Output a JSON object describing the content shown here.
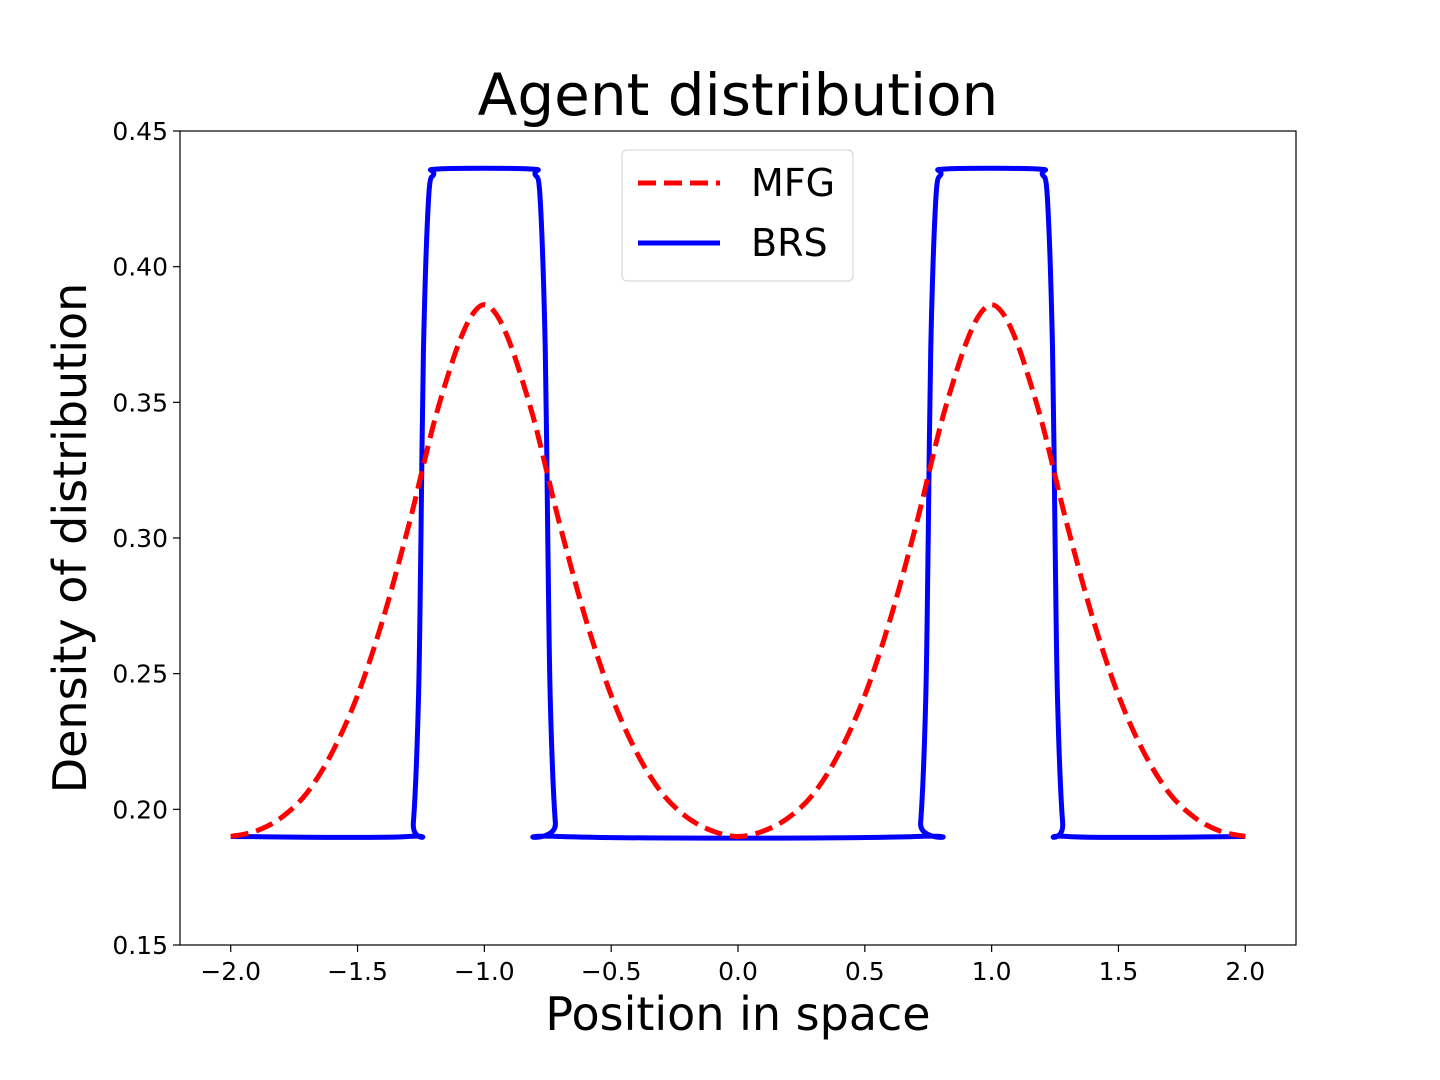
{
  "chart_data": {
    "type": "line",
    "title": "Agent distribution",
    "xlabel": "Position in space",
    "ylabel": "Density of distribution",
    "xlim": [
      -2.2,
      2.2
    ],
    "ylim": [
      0.15,
      0.45
    ],
    "xticks": [
      -2.0,
      -1.5,
      -1.0,
      -0.5,
      0.0,
      0.5,
      1.0,
      1.5,
      2.0
    ],
    "xtick_labels": [
      "−2.0",
      "−1.5",
      "−1.0",
      "−0.5",
      "0.0",
      "0.5",
      "1.0",
      "1.5",
      "2.0"
    ],
    "yticks": [
      0.15,
      0.2,
      0.25,
      0.3,
      0.35,
      0.4,
      0.45
    ],
    "ytick_labels": [
      "0.15",
      "0.20",
      "0.25",
      "0.30",
      "0.35",
      "0.40",
      "0.45"
    ],
    "grid": false,
    "legend_position": "top-center",
    "series": [
      {
        "name": "MFG",
        "color": "#ff0000",
        "style": "dashed",
        "x": [
          -2.0,
          -1.9,
          -1.8,
          -1.7,
          -1.6,
          -1.5,
          -1.4,
          -1.3,
          -1.25,
          -1.2,
          -1.15,
          -1.1,
          -1.05,
          -1.0,
          -0.95,
          -0.9,
          -0.85,
          -0.8,
          -0.75,
          -0.7,
          -0.6,
          -0.5,
          -0.4,
          -0.3,
          -0.2,
          -0.1,
          0.0,
          0.1,
          0.2,
          0.3,
          0.4,
          0.5,
          0.6,
          0.7,
          0.75,
          0.8,
          0.85,
          0.9,
          0.95,
          1.0,
          1.05,
          1.1,
          1.15,
          1.2,
          1.25,
          1.3,
          1.4,
          1.5,
          1.6,
          1.7,
          1.8,
          1.9,
          2.0
        ],
        "y": [
          0.19,
          0.192,
          0.197,
          0.206,
          0.221,
          0.242,
          0.27,
          0.304,
          0.323,
          0.342,
          0.358,
          0.372,
          0.382,
          0.386,
          0.382,
          0.372,
          0.358,
          0.342,
          0.323,
          0.304,
          0.27,
          0.242,
          0.221,
          0.206,
          0.197,
          0.192,
          0.19,
          0.192,
          0.197,
          0.206,
          0.221,
          0.242,
          0.27,
          0.304,
          0.323,
          0.342,
          0.358,
          0.372,
          0.382,
          0.386,
          0.382,
          0.372,
          0.358,
          0.342,
          0.323,
          0.304,
          0.27,
          0.242,
          0.221,
          0.206,
          0.197,
          0.192,
          0.19
        ]
      },
      {
        "name": "BRS",
        "color": "#0000ff",
        "style": "solid",
        "x": [
          -2.0,
          -1.3,
          -1.28,
          -1.26,
          -1.25,
          -1.24,
          -1.22,
          -1.2,
          -1.18,
          -0.82,
          -0.8,
          -0.78,
          -0.76,
          -0.75,
          -0.74,
          -0.72,
          -0.7,
          0.7,
          0.72,
          0.74,
          0.75,
          0.76,
          0.78,
          0.8,
          0.82,
          1.18,
          1.2,
          1.22,
          1.24,
          1.25,
          1.26,
          1.28,
          1.3,
          2.0
        ],
        "y": [
          0.19,
          0.19,
          0.195,
          0.24,
          0.3,
          0.37,
          0.425,
          0.434,
          0.436,
          0.436,
          0.434,
          0.425,
          0.37,
          0.3,
          0.24,
          0.195,
          0.19,
          0.19,
          0.195,
          0.24,
          0.3,
          0.37,
          0.425,
          0.434,
          0.436,
          0.436,
          0.434,
          0.425,
          0.37,
          0.3,
          0.24,
          0.195,
          0.19,
          0.19
        ]
      }
    ]
  }
}
